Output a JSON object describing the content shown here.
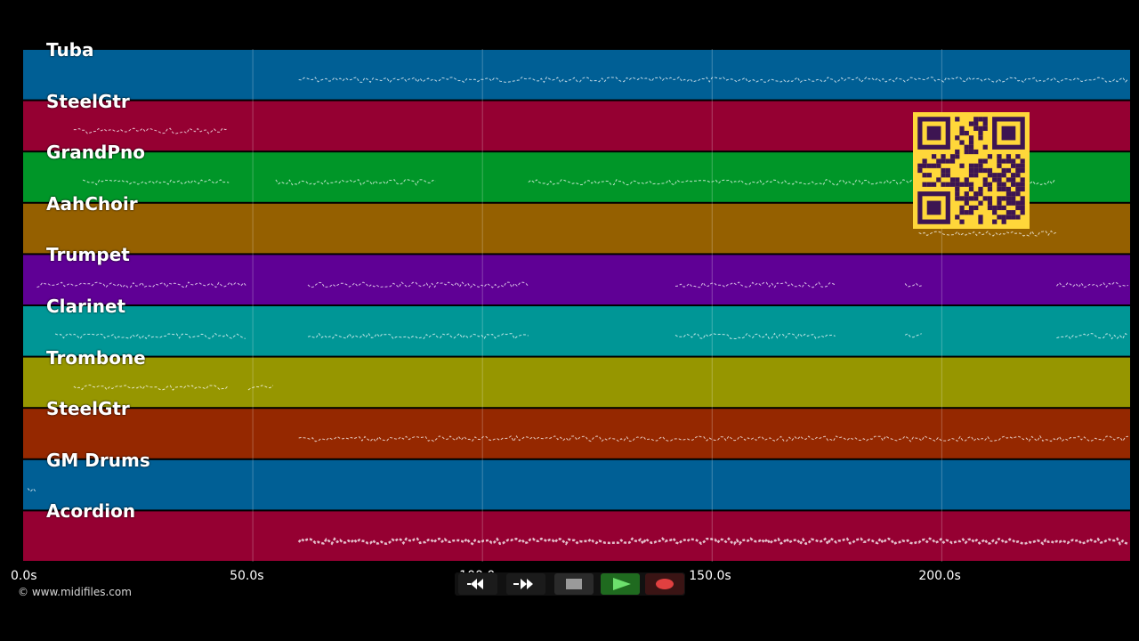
{
  "app": {
    "copyright": "© www.midifiles.com"
  },
  "tracks": [
    {
      "name": "Tuba",
      "color": "#005f95"
    },
    {
      "name": "SteelGtr",
      "color": "#950032"
    },
    {
      "name": "GrandPno",
      "color": "#009628"
    },
    {
      "name": "AahChoir",
      "color": "#956000"
    },
    {
      "name": "Trumpet",
      "color": "#5f0095"
    },
    {
      "name": "Clarinet",
      "color": "#009696"
    },
    {
      "name": "Trombone",
      "color": "#969600"
    },
    {
      "name": "SteelGtr",
      "color": "#952800"
    },
    {
      "name": "GM Drums",
      "color": "#005f95"
    },
    {
      "name": "Acordion",
      "color": "#950032"
    }
  ],
  "timeline": {
    "ticks": [
      "0.0s",
      "50.0s",
      "100.0s",
      "150.0s",
      "200.0s"
    ],
    "tick_values": [
      0,
      50,
      100,
      150,
      200
    ],
    "max_seconds": 241
  },
  "transport": {
    "rewind": "rewind-icon",
    "forward": "fast-forward-icon",
    "stop": "stop-icon",
    "play": "play-icon",
    "record": "record-icon",
    "play_color": "#55d255",
    "record_color": "#e04040"
  },
  "qr_icon": "qr-code-icon"
}
